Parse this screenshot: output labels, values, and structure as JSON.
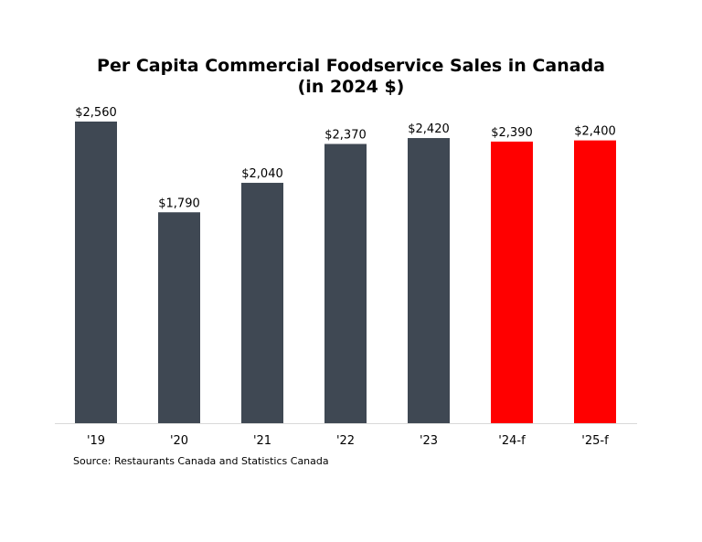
{
  "chart_data": {
    "type": "bar",
    "title": "Per Capita Commercial Foodservice Sales in Canada",
    "subtitle": "(in 2024 $)",
    "categories": [
      "'19",
      "'20",
      "'21",
      "'22",
      "'23",
      "'24-f",
      "'25-f"
    ],
    "values": [
      2560,
      1790,
      2040,
      2370,
      2420,
      2390,
      2400
    ],
    "labels": [
      "$2,560",
      "$1,790",
      "$2,040",
      "$2,370",
      "$2,420",
      "$2,390",
      "$2,400"
    ],
    "forecast": [
      false,
      false,
      false,
      false,
      false,
      true,
      true
    ],
    "colors": {
      "actual": "#3f4853",
      "forecast": "#ff0000",
      "axis": "#d9d9d9"
    },
    "xlabel": "",
    "ylabel": "",
    "ylim": [
      0,
      2560
    ],
    "grid": false,
    "source": "Source: Restaurants Canada and Statistics Canada"
  }
}
